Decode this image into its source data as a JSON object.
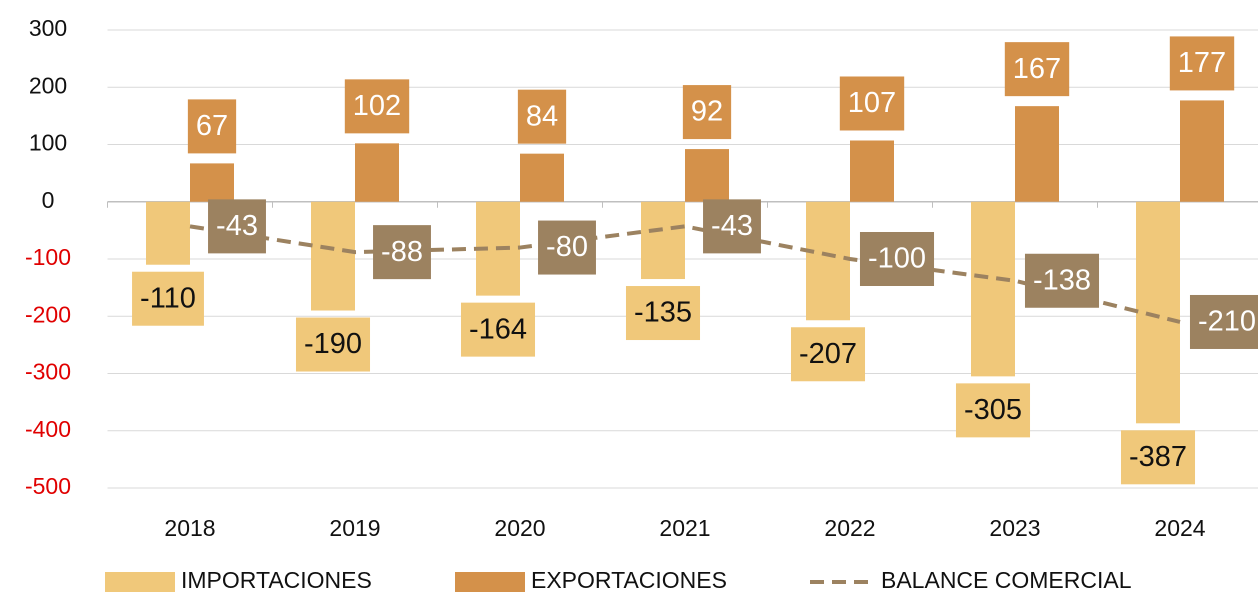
{
  "chart_data": {
    "type": "bar_line",
    "categories": [
      "2018",
      "2019",
      "2020",
      "2021",
      "2022",
      "2023",
      "2024"
    ],
    "series": [
      {
        "name": "IMPORTACIONES",
        "type": "bar",
        "color": "#f0c87a",
        "label_color": "#111111",
        "values": [
          -110,
          -190,
          -164,
          -135,
          -207,
          -305,
          -387
        ]
      },
      {
        "name": "EXPORTACIONES",
        "type": "bar",
        "color": "#d4914a",
        "label_color": "#ffffff",
        "values": [
          67,
          102,
          84,
          92,
          107,
          167,
          177
        ]
      },
      {
        "name": "BALANCE COMERCIAL",
        "type": "line",
        "dashed": true,
        "color": "#9c8260",
        "label_color": "#ffffff",
        "values": [
          -43,
          -88,
          -80,
          -43,
          -100,
          -138,
          -210
        ]
      }
    ],
    "ylim": [
      -500,
      300
    ],
    "yticks": [
      -500,
      -400,
      -300,
      -200,
      -100,
      0,
      100,
      200,
      300
    ],
    "grid": true,
    "negative_tick_color": "#e00000",
    "legend": "bottom"
  }
}
